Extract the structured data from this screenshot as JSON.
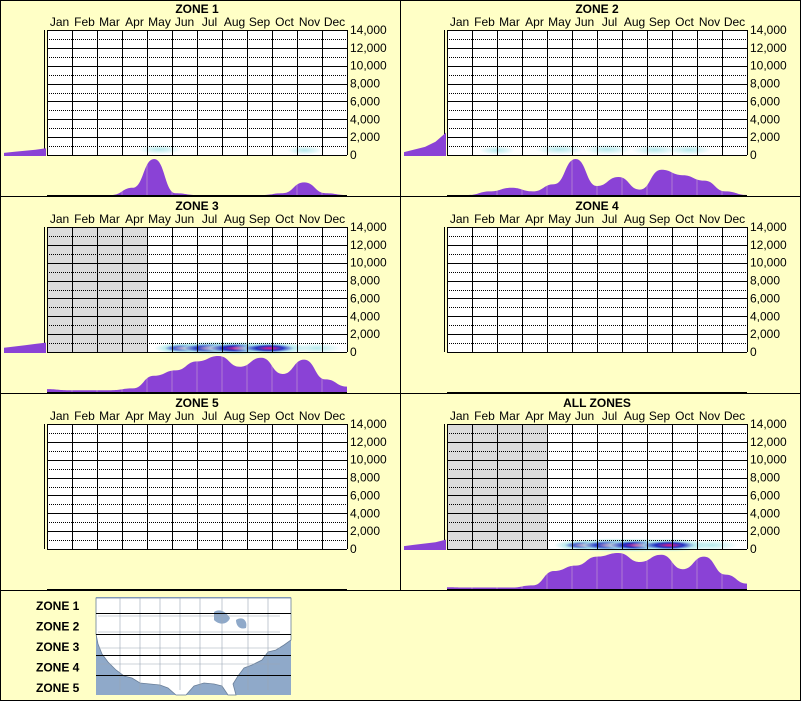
{
  "colors": {
    "background": "#ffffc6",
    "frame": "#000000",
    "grid": "#000000",
    "histogram_fill": "#8a42d6",
    "no_data": "#dcdcdc",
    "heat_low": "#aee8ea",
    "heat_mid": "#1a2bbf",
    "heat_high": "#e01a8a",
    "map_water": "#8fa9c9",
    "map_land": "#ffffff"
  },
  "chart_data": [
    {
      "type": "heatmap",
      "title": "ZONE 1",
      "categories": [
        "Jan",
        "Feb",
        "Mar",
        "Apr",
        "May",
        "Jun",
        "Jul",
        "Aug",
        "Sep",
        "Oct",
        "Nov",
        "Dec"
      ],
      "y_ticks": [
        "14,000",
        "12,000",
        "10,000",
        "8,000",
        "6,000",
        "4,000",
        "2,000",
        "0"
      ],
      "ylim": [
        0,
        14000
      ],
      "no_data_months": [],
      "heat": [
        {
          "month": 4.5,
          "elev": 400,
          "intensity": 0.25
        },
        {
          "month": 10.3,
          "elev": 300,
          "intensity": 0.12
        }
      ],
      "elevation_profile": [
        0.12,
        0.16,
        0.2,
        0.24,
        0.3
      ],
      "monthly_histogram": [
        0,
        0,
        0,
        0,
        0.2,
        1.0,
        0.05,
        0,
        0,
        0,
        0,
        0.05,
        0.35,
        0.05,
        0
      ]
    },
    {
      "type": "heatmap",
      "title": "ZONE 2",
      "categories": [
        "Jan",
        "Feb",
        "Mar",
        "Apr",
        "May",
        "Jun",
        "Jul",
        "Aug",
        "Sep",
        "Oct",
        "Nov",
        "Dec"
      ],
      "y_ticks": [
        "14,000",
        "12,000",
        "10,000",
        "8,000",
        "6,000",
        "4,000",
        "2,000",
        "0"
      ],
      "ylim": [
        0,
        14000
      ],
      "no_data_months": [],
      "heat": [
        {
          "month": 2.0,
          "elev": 300,
          "intensity": 0.12
        },
        {
          "month": 4.5,
          "elev": 400,
          "intensity": 0.35
        },
        {
          "month": 6.4,
          "elev": 400,
          "intensity": 0.35
        },
        {
          "month": 8.3,
          "elev": 350,
          "intensity": 0.3
        },
        {
          "month": 9.7,
          "elev": 350,
          "intensity": 0.25
        }
      ],
      "elevation_profile": [
        0.15,
        0.25,
        0.35,
        0.55,
        0.9
      ],
      "monthly_histogram": [
        0,
        0,
        0.1,
        0.2,
        0.1,
        0.3,
        1.0,
        0.25,
        0.5,
        0.15,
        0.7,
        0.55,
        0.4,
        0.1,
        0
      ]
    },
    {
      "type": "heatmap",
      "title": "ZONE 3",
      "categories": [
        "Jan",
        "Feb",
        "Mar",
        "Apr",
        "May",
        "Jun",
        "Jul",
        "Aug",
        "Sep",
        "Oct",
        "Nov",
        "Dec"
      ],
      "y_ticks": [
        "14,000",
        "12,000",
        "10,000",
        "8,000",
        "6,000",
        "4,000",
        "2,000",
        "0"
      ],
      "ylim": [
        0,
        14000
      ],
      "no_data_months": [
        "Jan",
        "Feb",
        "Mar",
        "Apr"
      ],
      "heat": [
        {
          "month": 5.5,
          "elev": 200,
          "intensity": 0.55
        },
        {
          "month": 6.6,
          "elev": 200,
          "intensity": 0.95
        },
        {
          "month": 7.6,
          "elev": 200,
          "intensity": 0.9
        },
        {
          "month": 8.9,
          "elev": 200,
          "intensity": 0.8
        },
        {
          "month": 10.8,
          "elev": 200,
          "intensity": 0.35
        }
      ],
      "elevation_profile": [
        0.2,
        0.25,
        0.3,
        0.35,
        0.4
      ],
      "monthly_histogram": [
        0.08,
        0.05,
        0.05,
        0.05,
        0.1,
        0.45,
        0.6,
        0.85,
        1.0,
        0.7,
        0.95,
        0.5,
        0.9,
        0.35,
        0.15
      ]
    },
    {
      "type": "heatmap",
      "title": "ZONE 4",
      "categories": [
        "Jan",
        "Feb",
        "Mar",
        "Apr",
        "May",
        "Jun",
        "Jul",
        "Aug",
        "Sep",
        "Oct",
        "Nov",
        "Dec"
      ],
      "y_ticks": [
        "14,000",
        "12,000",
        "10,000",
        "8,000",
        "6,000",
        "4,000",
        "2,000",
        "0"
      ],
      "ylim": [
        0,
        14000
      ],
      "no_data_months": [],
      "heat": [],
      "elevation_profile": [],
      "monthly_histogram": []
    },
    {
      "type": "heatmap",
      "title": "ZONE 5",
      "categories": [
        "Jan",
        "Feb",
        "Mar",
        "Apr",
        "May",
        "Jun",
        "Jul",
        "Aug",
        "Sep",
        "Oct",
        "Nov",
        "Dec"
      ],
      "y_ticks": [
        "14,000",
        "12,000",
        "10,000",
        "8,000",
        "6,000",
        "4,000",
        "2,000",
        "0"
      ],
      "ylim": [
        0,
        14000
      ],
      "no_data_months": [],
      "heat": [],
      "elevation_profile": [],
      "monthly_histogram": []
    },
    {
      "type": "heatmap",
      "title": "ALL ZONES",
      "categories": [
        "Jan",
        "Feb",
        "Mar",
        "Apr",
        "May",
        "Jun",
        "Jul",
        "Aug",
        "Sep",
        "Oct",
        "Nov",
        "Dec"
      ],
      "y_ticks": [
        "14,000",
        "12,000",
        "10,000",
        "8,000",
        "6,000",
        "4,000",
        "2,000",
        "0"
      ],
      "ylim": [
        0,
        14000
      ],
      "no_data_months": [
        "Jan",
        "Feb",
        "Mar",
        "Apr"
      ],
      "heat": [
        {
          "month": 5.5,
          "elev": 200,
          "intensity": 0.55
        },
        {
          "month": 6.6,
          "elev": 200,
          "intensity": 0.95
        },
        {
          "month": 7.6,
          "elev": 200,
          "intensity": 0.9
        },
        {
          "month": 8.9,
          "elev": 200,
          "intensity": 0.85
        },
        {
          "month": 10.6,
          "elev": 200,
          "intensity": 0.4
        }
      ],
      "elevation_profile": [
        0.15,
        0.2,
        0.25,
        0.3,
        0.4
      ],
      "monthly_histogram": [
        0.05,
        0.04,
        0.04,
        0.04,
        0.1,
        0.5,
        0.65,
        0.9,
        1.0,
        0.75,
        0.95,
        0.55,
        0.9,
        0.4,
        0.15
      ]
    }
  ],
  "legend": {
    "zones": [
      "ZONE 1",
      "ZONE 2",
      "ZONE 3",
      "ZONE 4",
      "ZONE 5"
    ],
    "map": "us-map"
  }
}
